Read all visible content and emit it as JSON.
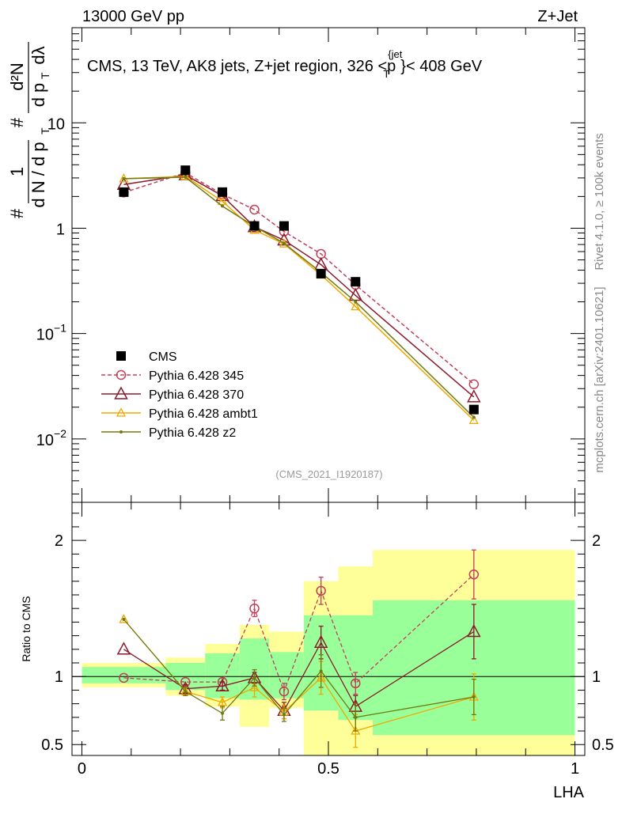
{
  "header": {
    "left": "13000 GeV pp",
    "right": "Z+Jet",
    "side_rivet": "Rivet 4.1.0, ≥ 100k events",
    "side_mcplots": "mcplots.cern.ch [arXiv:2401.10621]"
  },
  "colors": {
    "cms": "#000000",
    "p345": "#c0405a",
    "p370": "#8b1a2b",
    "ambt1": "#f0a800",
    "z2": "#707a10",
    "band_stat": "#99ff99",
    "band_total": "#ffff99"
  },
  "chart_data": [
    {
      "type": "line",
      "title": "CMS, 13 TeV, AK8 jets, Z+jet region, 326 <p_T^{jet}< 408 GeV",
      "title_main": "CMS, 13 TeV, AK8 jets, Z+jet region, 326 <p",
      "title_sup": "{jet",
      "title_sub": "T",
      "title_tail": "}< 408 GeV",
      "ylabel": "# 1/(dN / dp_T) # d²N/(dp_T dλ)",
      "ylabel_parts": {
        "hash1": "#",
        "one": "1",
        "den1": "d N / d p",
        "hash2": "#",
        "num2": "d²N",
        "den2": "d p",
        "lam": "dλ",
        "sub": "T"
      },
      "yscale": "log",
      "ylim": [
        0.0025,
        80
      ],
      "yticks": [
        {
          "value": 10,
          "label": "10"
        },
        {
          "value": 1,
          "label": "1"
        },
        {
          "value": 0.1,
          "label": "10",
          "exp": "−1"
        },
        {
          "value": 0.01,
          "label": "10",
          "exp": "−2"
        }
      ],
      "watermark": "(CMS_2021_I1920187)",
      "legend_position": "lower-left",
      "x": [
        0.085,
        0.21,
        0.285,
        0.35,
        0.41,
        0.485,
        0.555,
        0.795
      ],
      "series": [
        {
          "name": "CMS",
          "key": "cms",
          "marker": "square",
          "line": "none",
          "values": [
            2.2,
            3.55,
            2.2,
            1.05,
            1.05,
            0.37,
            0.31,
            0.019
          ]
        },
        {
          "name": "Pythia 6.428 345",
          "key": "p345",
          "marker": "circle-open",
          "line": "dashed",
          "values": [
            2.18,
            3.35,
            2.1,
            1.5,
            0.93,
            0.57,
            0.29,
            0.033
          ]
        },
        {
          "name": "Pythia 6.428 370",
          "key": "p370",
          "marker": "triangle-open",
          "line": "solid",
          "values": [
            2.6,
            3.2,
            2.03,
            1.03,
            0.77,
            0.45,
            0.23,
            0.025
          ]
        },
        {
          "name": "Pythia 6.428 ambt1",
          "key": "ambt1",
          "marker": "triangle-small",
          "line": "solid",
          "values": [
            2.95,
            3.1,
            1.8,
            0.96,
            0.71,
            0.36,
            0.18,
            0.015
          ]
        },
        {
          "name": "Pythia 6.428 z2",
          "key": "z2",
          "marker": "dot",
          "line": "solid",
          "values": [
            2.95,
            3.05,
            1.62,
            1.04,
            0.72,
            0.38,
            0.2,
            0.016
          ]
        }
      ]
    },
    {
      "type": "line",
      "ylabel": "Ratio to CMS",
      "xlabel": "LHA",
      "xlim": [
        -0.02,
        1.02
      ],
      "ylim": [
        0.42,
        2.28
      ],
      "xticks": [
        {
          "value": 0,
          "label": "0"
        },
        {
          "value": 0.5,
          "label": "0.5"
        },
        {
          "value": 1,
          "label": "1"
        }
      ],
      "yticks": [
        {
          "value": 0.5,
          "label": "0.5"
        },
        {
          "value": 1,
          "label": "1"
        },
        {
          "value": 2,
          "label": "2"
        }
      ],
      "reference": 1,
      "bins": [
        {
          "x0": 0.0,
          "x1": 0.17,
          "total": [
            0.92,
            1.1
          ],
          "stat": [
            0.95,
            1.07
          ]
        },
        {
          "x0": 0.17,
          "x1": 0.25,
          "total": [
            0.86,
            1.14
          ],
          "stat": [
            0.9,
            1.1
          ]
        },
        {
          "x0": 0.25,
          "x1": 0.32,
          "total": [
            0.78,
            1.24
          ],
          "stat": [
            0.84,
            1.17
          ]
        },
        {
          "x0": 0.32,
          "x1": 0.38,
          "total": [
            0.63,
            1.38
          ],
          "stat": [
            0.83,
            1.28
          ]
        },
        {
          "x0": 0.38,
          "x1": 0.45,
          "total": [
            0.77,
            1.33
          ],
          "stat": [
            0.84,
            1.18
          ]
        },
        {
          "x0": 0.45,
          "x1": 0.52,
          "total": [
            0.4,
            1.7
          ],
          "stat": [
            0.75,
            1.45
          ]
        },
        {
          "x0": 0.52,
          "x1": 0.59,
          "total": [
            0.4,
            1.81
          ],
          "stat": [
            0.68,
            1.45
          ]
        },
        {
          "x0": 0.59,
          "x1": 1.0,
          "total": [
            0.4,
            1.93
          ],
          "stat": [
            0.57,
            1.56
          ]
        }
      ],
      "x": [
        0.085,
        0.21,
        0.285,
        0.35,
        0.41,
        0.485,
        0.555,
        0.795
      ],
      "series": [
        {
          "name": "Pythia 6.428 345",
          "key": "p345",
          "values": [
            0.99,
            0.96,
            0.96,
            1.5,
            0.89,
            1.63,
            0.95,
            1.75
          ],
          "err": [
            0.0,
            0.0,
            0.03,
            0.06,
            0.06,
            0.1,
            0.08,
            0.18
          ]
        },
        {
          "name": "Pythia 6.428 370",
          "key": "p370",
          "values": [
            1.2,
            0.91,
            0.93,
            0.99,
            0.75,
            1.25,
            0.78,
            1.33
          ],
          "err": [
            0.0,
            0.03,
            0.03,
            0.04,
            0.06,
            0.12,
            0.08,
            0.2
          ]
        },
        {
          "name": "Pythia 6.428 ambt1",
          "key": "ambt1",
          "values": [
            1.42,
            0.89,
            0.81,
            0.92,
            0.74,
            0.99,
            0.6,
            0.85
          ],
          "err": [
            0.0,
            0.03,
            0.04,
            0.07,
            0.05,
            0.12,
            0.12,
            0.17
          ]
        },
        {
          "name": "Pythia 6.428 z2",
          "key": "z2",
          "values": [
            1.42,
            0.89,
            0.73,
            0.99,
            0.72,
            1.04,
            0.7,
            0.85
          ],
          "err": [
            0.0,
            0.03,
            0.05,
            0.06,
            0.05,
            0.12,
            0.1,
            0.13
          ]
        }
      ]
    }
  ]
}
